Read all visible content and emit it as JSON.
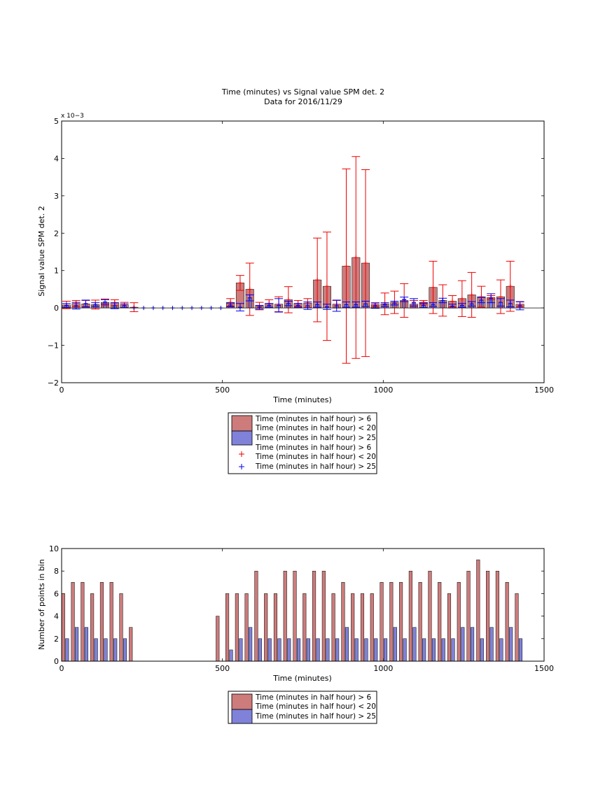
{
  "chart_data": [
    {
      "type": "bar",
      "title": "Time (minutes) vs Signal value SPM det. 2",
      "subtitle": "Data for 2016/11/29",
      "xlabel": "Time (minutes)",
      "ylabel": "Signal value SPM det. 2",
      "xlim": [
        0,
        1500
      ],
      "ylim": [
        -2,
        5
      ],
      "y_exponent": "x 10−3",
      "xticks": [
        "0",
        "500",
        "1000",
        "1500"
      ],
      "yticks": [
        "−2",
        "−1",
        "0",
        "1",
        "2",
        "3",
        "4",
        "5"
      ],
      "legend_placement": "below",
      "legend": [
        {
          "line1": "Time (minutes in half hour) > 6",
          "line2": "Time (minutes in half hour) < 20",
          "kind": "bar"
        },
        {
          "line1": "Time (minutes in half hour) > 25",
          "kind": "bar"
        },
        {
          "line1": "Time (minutes in half hour) > 6",
          "line2": "Time (minutes in half hour) < 20",
          "kind": "plus"
        },
        {
          "line1": "Time (minutes in half hour) > 25",
          "kind": "plus"
        }
      ],
      "colors": {
        "red_bar": "#cd7b7b",
        "blue_bar": "#7f82d8",
        "red_err": "#ee0000",
        "blue_err": "#0000ee"
      },
      "series": [
        {
          "x": [
            15,
            45,
            75,
            105,
            135,
            165,
            195,
            225,
            525,
            555,
            585,
            615,
            645,
            675,
            705,
            735,
            765,
            795,
            825,
            855,
            885,
            915,
            945,
            975,
            1005,
            1035,
            1065,
            1095,
            1125,
            1155,
            1185,
            1215,
            1245,
            1275,
            1305,
            1335,
            1365,
            1395,
            1425
          ],
          "values": [
            0.08,
            0.12,
            0.11,
            0.09,
            0.15,
            0.14,
            0.08,
            0.02,
            0.15,
            0.67,
            0.5,
            0.05,
            0.12,
            0.1,
            0.22,
            0.12,
            0.13,
            0.75,
            0.58,
            0.1,
            1.12,
            1.35,
            1.2,
            0.09,
            0.11,
            0.15,
            0.2,
            0.1,
            0.15,
            0.55,
            0.2,
            0.18,
            0.25,
            0.35,
            0.3,
            0.28,
            0.3,
            0.58,
            0.1
          ],
          "err": [
            0.1,
            0.08,
            0.09,
            0.12,
            0.09,
            0.08,
            0.07,
            0.12,
            0.1,
            0.2,
            0.7,
            0.1,
            0.1,
            0.2,
            0.35,
            0.08,
            0.12,
            1.12,
            1.45,
            0.1,
            2.6,
            2.7,
            2.5,
            0.05,
            0.29,
            0.3,
            0.45,
            0.1,
            0.05,
            0.7,
            0.42,
            0.15,
            0.48,
            0.6,
            0.28,
            0.05,
            0.45,
            0.67,
            0.06
          ]
        },
        {
          "x": [
            15,
            45,
            75,
            105,
            135,
            165,
            195,
            225,
            255,
            285,
            315,
            345,
            375,
            405,
            435,
            465,
            495,
            525,
            555,
            585,
            615,
            645,
            675,
            705,
            735,
            765,
            795,
            825,
            855,
            885,
            915,
            945,
            975,
            1005,
            1035,
            1065,
            1095,
            1125,
            1155,
            1185,
            1215,
            1245,
            1275,
            1305,
            1335,
            1365,
            1395,
            1425
          ],
          "values": [
            0.07,
            0.06,
            0.12,
            0.09,
            0.16,
            0.06,
            0.06,
            0,
            0,
            0,
            0,
            0,
            0,
            0,
            0,
            0,
            0,
            0.08,
            0.02,
            0.27,
            0.02,
            0.07,
            0.07,
            0.12,
            0.07,
            0.06,
            0.09,
            0.03,
            0.06,
            0.09,
            0.09,
            0.11,
            0.06,
            0.09,
            0.13,
            0.23,
            0.15,
            0.07,
            0.09,
            0.2,
            0.05,
            0.07,
            0.11,
            0.21,
            0.26,
            0.15,
            0.12,
            0.06
          ],
          "err": [
            0.05,
            0.09,
            0.09,
            0.05,
            0.06,
            0.08,
            0.05,
            0,
            0,
            0,
            0,
            0,
            0,
            0,
            0,
            0,
            0,
            0.05,
            0.1,
            0.08,
            0.05,
            0.05,
            0.18,
            0.06,
            0.05,
            0.1,
            0.07,
            0.07,
            0.15,
            0.07,
            0.07,
            0.07,
            0.07,
            0.05,
            0.05,
            0.06,
            0.1,
            0.06,
            0.05,
            0.06,
            0.05,
            0.05,
            0.06,
            0.07,
            0.12,
            0.1,
            0.09,
            0.11
          ]
        }
      ]
    },
    {
      "type": "bar",
      "xlabel": "Time (minutes)",
      "ylabel": "Number of points in bin",
      "xlim": [
        0,
        1500
      ],
      "ylim": [
        0,
        10
      ],
      "xticks": [
        "0",
        "500",
        "1000",
        "1500"
      ],
      "yticks": [
        "0",
        "2",
        "4",
        "6",
        "8",
        "10"
      ],
      "legend_placement": "below",
      "legend": [
        {
          "line1": "Time (minutes in half hour) > 6",
          "line2": "Time (minutes in half hour) < 20",
          "kind": "bar"
        },
        {
          "line1": "Time (minutes in half hour) > 25",
          "kind": "bar"
        }
      ],
      "series": [
        {
          "x": [
            15,
            45,
            75,
            105,
            135,
            165,
            195,
            225,
            495,
            525,
            555,
            585,
            615,
            645,
            675,
            705,
            735,
            765,
            795,
            825,
            855,
            885,
            915,
            945,
            975,
            1005,
            1035,
            1065,
            1095,
            1125,
            1155,
            1185,
            1215,
            1245,
            1275,
            1305,
            1335,
            1365,
            1395,
            1425
          ],
          "values": [
            6,
            7,
            7,
            6,
            7,
            7,
            6,
            3,
            4,
            6,
            6,
            6,
            8,
            6,
            6,
            8,
            8,
            6,
            8,
            8,
            6,
            7,
            6,
            6,
            6,
            7,
            7,
            7,
            8,
            7,
            8,
            7,
            6,
            7,
            8,
            9,
            8,
            8,
            7,
            6
          ]
        },
        {
          "x": [
            15,
            45,
            75,
            105,
            135,
            165,
            195,
            525,
            555,
            585,
            615,
            645,
            675,
            705,
            735,
            765,
            795,
            825,
            855,
            885,
            915,
            945,
            975,
            1005,
            1035,
            1065,
            1095,
            1125,
            1155,
            1185,
            1215,
            1245,
            1275,
            1305,
            1335,
            1365,
            1395,
            1425
          ],
          "values": [
            2,
            3,
            3,
            2,
            2,
            2,
            2,
            1,
            2,
            3,
            2,
            2,
            2,
            2,
            2,
            2,
            2,
            2,
            2,
            3,
            2,
            2,
            2,
            2,
            3,
            2,
            3,
            2,
            2,
            2,
            2,
            3,
            3,
            2,
            3,
            2,
            3,
            2
          ]
        }
      ]
    }
  ]
}
